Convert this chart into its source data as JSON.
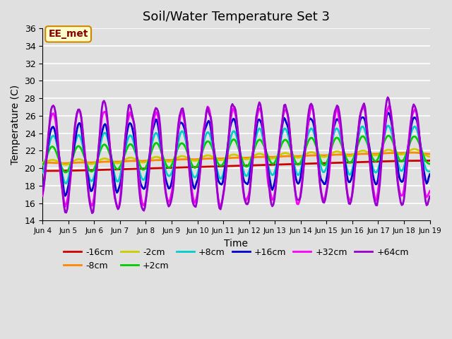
{
  "title": "Soil/Water Temperature Set 3",
  "xlabel": "Time",
  "ylabel": "Temperature (C)",
  "ylim": [
    14,
    36
  ],
  "yticks": [
    14,
    16,
    18,
    20,
    22,
    24,
    26,
    28,
    30,
    32,
    34,
    36
  ],
  "background_color": "#e0e0e0",
  "plot_bg_color": "#e0e0e0",
  "annotation_text": "EE_met",
  "annotation_bg": "#ffffcc",
  "annotation_border": "#cc8800",
  "legend_entries": [
    "-16cm",
    "-8cm",
    "-2cm",
    "+2cm",
    "+8cm",
    "+16cm",
    "+32cm",
    "+64cm"
  ],
  "line_colors": [
    "#cc0000",
    "#ff8800",
    "#cccc00",
    "#00cc00",
    "#00cccc",
    "#0000cc",
    "#ff00ff",
    "#9900cc"
  ],
  "line_widths": [
    2.0,
    2.0,
    2.0,
    2.0,
    2.0,
    2.0,
    2.0,
    2.0
  ],
  "xtick_labels": [
    "Jun 4",
    "Jun 5",
    "Jun 6",
    "Jun 7",
    "Jun 8",
    "Jun 9",
    "Jun 10",
    "Jun 11",
    "Jun 12",
    "Jun 13",
    "Jun 14",
    "Jun 15",
    "Jun 16",
    "Jun 17",
    "Jun 18",
    "Jun 19"
  ],
  "n_days": 15,
  "start_day": 0,
  "grid_color": "#ffffff",
  "title_fontsize": 13
}
